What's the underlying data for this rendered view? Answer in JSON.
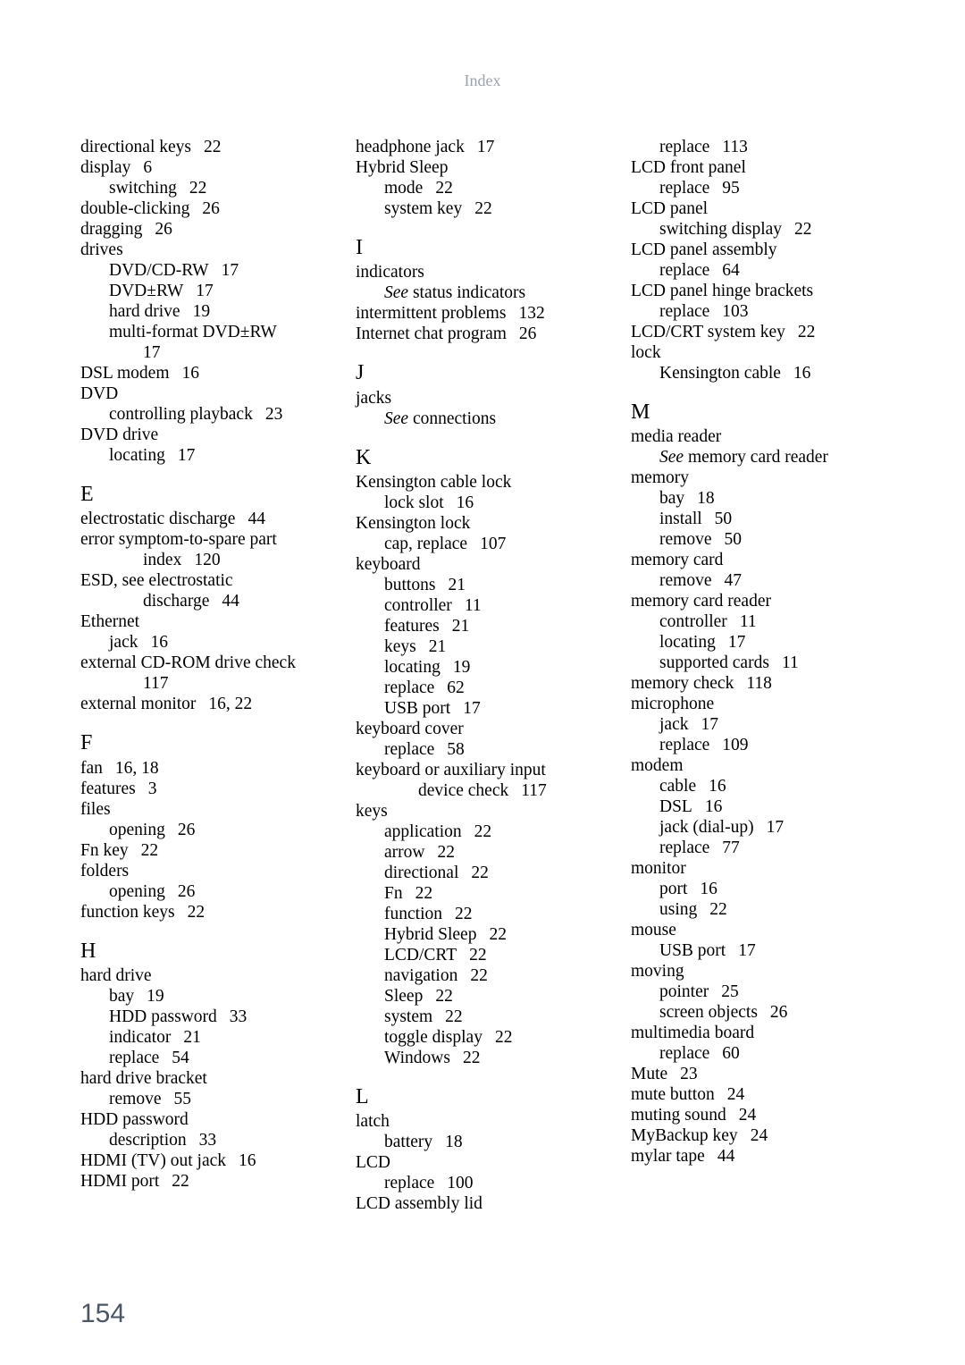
{
  "header": "Index",
  "pageNumber": "154",
  "columns": [
    [
      {
        "cls": "l0",
        "k": "directional keys",
        "p": "22"
      },
      {
        "cls": "l0",
        "k": "display",
        "p": "6"
      },
      {
        "cls": "l1",
        "k": "switching",
        "p": "22"
      },
      {
        "cls": "l0",
        "k": "double-clicking",
        "p": "26"
      },
      {
        "cls": "l0",
        "k": "dragging",
        "p": "26"
      },
      {
        "cls": "l0",
        "k": "drives"
      },
      {
        "cls": "l1",
        "k": "DVD/CD-RW",
        "p": "17"
      },
      {
        "cls": "l1",
        "k": "DVD±RW",
        "p": "17"
      },
      {
        "cls": "l1",
        "k": "hard drive",
        "p": "19"
      },
      {
        "cls": "l1",
        "k": "multi-format DVD±RW"
      },
      {
        "cls": "l2",
        "k": "17"
      },
      {
        "cls": "l0",
        "k": "DSL modem",
        "p": "16"
      },
      {
        "cls": "l0",
        "k": "DVD"
      },
      {
        "cls": "l1",
        "k": "controlling playback",
        "p": "23"
      },
      {
        "cls": "l0",
        "k": "DVD drive"
      },
      {
        "cls": "l1",
        "k": "locating",
        "p": "17"
      },
      {
        "letter": "E"
      },
      {
        "cls": "l0",
        "k": "electrostatic discharge",
        "p": "44"
      },
      {
        "cls": "l0",
        "k": "error symptom-to-spare part"
      },
      {
        "cls": "l2",
        "k": "index",
        "p": "120"
      },
      {
        "cls": "l0",
        "k": "ESD, see electrostatic"
      },
      {
        "cls": "l2",
        "k": "discharge",
        "p": "44"
      },
      {
        "cls": "l0",
        "k": "Ethernet"
      },
      {
        "cls": "l1",
        "k": "jack",
        "p": "16"
      },
      {
        "cls": "l0",
        "k": "external CD-ROM drive check"
      },
      {
        "cls": "l2",
        "k": "117"
      },
      {
        "cls": "l0",
        "k": "external monitor",
        "p": "16, 22"
      },
      {
        "letter": "F"
      },
      {
        "cls": "l0",
        "k": "fan",
        "p": "16, 18"
      },
      {
        "cls": "l0",
        "k": "features",
        "p": "3"
      },
      {
        "cls": "l0",
        "k": "files"
      },
      {
        "cls": "l1",
        "k": "opening",
        "p": "26"
      },
      {
        "cls": "l0",
        "k": "Fn key",
        "p": "22"
      },
      {
        "cls": "l0",
        "k": "folders"
      },
      {
        "cls": "l1",
        "k": "opening",
        "p": "26"
      },
      {
        "cls": "l0",
        "k": "function keys",
        "p": "22"
      },
      {
        "letter": "H"
      },
      {
        "cls": "l0",
        "k": "hard drive"
      },
      {
        "cls": "l1",
        "k": "bay",
        "p": "19"
      },
      {
        "cls": "l1",
        "k": "HDD password",
        "p": "33"
      },
      {
        "cls": "l1",
        "k": "indicator",
        "p": "21"
      },
      {
        "cls": "l1",
        "k": "replace",
        "p": "54"
      },
      {
        "cls": "l0",
        "k": "hard drive bracket"
      },
      {
        "cls": "l1",
        "k": "remove",
        "p": "55"
      },
      {
        "cls": "l0",
        "k": "HDD password"
      },
      {
        "cls": "l1",
        "k": "description",
        "p": "33"
      },
      {
        "cls": "l0",
        "k": "HDMI (TV) out jack",
        "p": "16"
      },
      {
        "cls": "l0",
        "k": "HDMI port",
        "p": "22"
      }
    ],
    [
      {
        "cls": "l0",
        "k": "headphone jack",
        "p": "17"
      },
      {
        "cls": "l0",
        "k": "Hybrid Sleep"
      },
      {
        "cls": "l1",
        "k": "mode",
        "p": "22"
      },
      {
        "cls": "l1",
        "k": "system key",
        "p": "22"
      },
      {
        "letter": "I"
      },
      {
        "cls": "l0",
        "k": "indicators"
      },
      {
        "cls": "l1",
        "see": "See",
        "after": " status indicators"
      },
      {
        "cls": "l0",
        "k": "intermittent problems",
        "p": "132"
      },
      {
        "cls": "l0",
        "k": "Internet chat program",
        "p": "26"
      },
      {
        "letter": "J"
      },
      {
        "cls": "l0",
        "k": "jacks"
      },
      {
        "cls": "l1",
        "see": "See",
        "after": " connections"
      },
      {
        "letter": "K"
      },
      {
        "cls": "l0",
        "k": "Kensington cable lock"
      },
      {
        "cls": "l1",
        "k": "lock slot",
        "p": "16"
      },
      {
        "cls": "l0",
        "k": "Kensington lock"
      },
      {
        "cls": "l1",
        "k": "cap, replace",
        "p": "107"
      },
      {
        "cls": "l0",
        "k": "keyboard"
      },
      {
        "cls": "l1",
        "k": "buttons",
        "p": "21"
      },
      {
        "cls": "l1",
        "k": "controller",
        "p": "11"
      },
      {
        "cls": "l1",
        "k": "features",
        "p": "21"
      },
      {
        "cls": "l1",
        "k": "keys",
        "p": "21"
      },
      {
        "cls": "l1",
        "k": "locating",
        "p": "19"
      },
      {
        "cls": "l1",
        "k": "replace",
        "p": "62"
      },
      {
        "cls": "l1",
        "k": "USB port",
        "p": "17"
      },
      {
        "cls": "l0",
        "k": "keyboard cover"
      },
      {
        "cls": "l1",
        "k": "replace",
        "p": "58"
      },
      {
        "cls": "l0",
        "k": "keyboard or auxiliary input"
      },
      {
        "cls": "l2",
        "k": "device check",
        "p": "117"
      },
      {
        "cls": "l0",
        "k": "keys"
      },
      {
        "cls": "l1",
        "k": "application",
        "p": "22"
      },
      {
        "cls": "l1",
        "k": "arrow",
        "p": "22"
      },
      {
        "cls": "l1",
        "k": "directional",
        "p": "22"
      },
      {
        "cls": "l1",
        "k": "Fn",
        "p": "22"
      },
      {
        "cls": "l1",
        "k": "function",
        "p": "22"
      },
      {
        "cls": "l1",
        "k": "Hybrid Sleep",
        "p": "22"
      },
      {
        "cls": "l1",
        "k": "LCD/CRT",
        "p": "22"
      },
      {
        "cls": "l1",
        "k": "navigation",
        "p": "22"
      },
      {
        "cls": "l1",
        "k": "Sleep",
        "p": "22"
      },
      {
        "cls": "l1",
        "k": "system",
        "p": "22"
      },
      {
        "cls": "l1",
        "k": "toggle display",
        "p": "22"
      },
      {
        "cls": "l1",
        "k": "Windows",
        "p": "22"
      },
      {
        "letter": "L"
      },
      {
        "cls": "l0",
        "k": "latch"
      },
      {
        "cls": "l1",
        "k": "battery",
        "p": "18"
      },
      {
        "cls": "l0",
        "k": "LCD"
      },
      {
        "cls": "l1",
        "k": "replace",
        "p": "100"
      },
      {
        "cls": "l0",
        "k": "LCD assembly lid"
      }
    ],
    [
      {
        "cls": "l1",
        "k": "replace",
        "p": "113"
      },
      {
        "cls": "l0",
        "k": "LCD front panel"
      },
      {
        "cls": "l1",
        "k": "replace",
        "p": "95"
      },
      {
        "cls": "l0",
        "k": "LCD panel"
      },
      {
        "cls": "l1",
        "k": "switching display",
        "p": "22"
      },
      {
        "cls": "l0",
        "k": "LCD panel assembly"
      },
      {
        "cls": "l1",
        "k": "replace",
        "p": "64"
      },
      {
        "cls": "l0",
        "k": "LCD panel hinge brackets"
      },
      {
        "cls": "l1",
        "k": "replace",
        "p": "103"
      },
      {
        "cls": "l0",
        "k": "LCD/CRT system key",
        "p": "22"
      },
      {
        "cls": "l0",
        "k": "lock"
      },
      {
        "cls": "l1",
        "k": "Kensington cable",
        "p": "16"
      },
      {
        "letter": "M"
      },
      {
        "cls": "l0",
        "k": "media reader"
      },
      {
        "cls": "l1",
        "see": "See",
        "after": " memory card reader"
      },
      {
        "cls": "l0",
        "k": "memory"
      },
      {
        "cls": "l1",
        "k": "bay",
        "p": "18"
      },
      {
        "cls": "l1",
        "k": "install",
        "p": "50"
      },
      {
        "cls": "l1",
        "k": "remove",
        "p": "50"
      },
      {
        "cls": "l0",
        "k": "memory card"
      },
      {
        "cls": "l1",
        "k": "remove",
        "p": "47"
      },
      {
        "cls": "l0",
        "k": "memory card reader"
      },
      {
        "cls": "l1",
        "k": "controller",
        "p": "11"
      },
      {
        "cls": "l1",
        "k": "locating",
        "p": "17"
      },
      {
        "cls": "l1",
        "k": "supported cards",
        "p": "11"
      },
      {
        "cls": "l0",
        "k": "memory check",
        "p": "118"
      },
      {
        "cls": "l0",
        "k": "microphone"
      },
      {
        "cls": "l1",
        "k": "jack",
        "p": "17"
      },
      {
        "cls": "l1",
        "k": "replace",
        "p": "109"
      },
      {
        "cls": "l0",
        "k": "modem"
      },
      {
        "cls": "l1",
        "k": "cable",
        "p": "16"
      },
      {
        "cls": "l1",
        "k": "DSL",
        "p": "16"
      },
      {
        "cls": "l1",
        "k": "jack (dial-up)",
        "p": "17"
      },
      {
        "cls": "l1",
        "k": "replace",
        "p": "77"
      },
      {
        "cls": "l0",
        "k": "monitor"
      },
      {
        "cls": "l1",
        "k": "port",
        "p": "16"
      },
      {
        "cls": "l1",
        "k": "using",
        "p": "22"
      },
      {
        "cls": "l0",
        "k": "mouse"
      },
      {
        "cls": "l1",
        "k": "USB port",
        "p": "17"
      },
      {
        "cls": "l0",
        "k": "moving"
      },
      {
        "cls": "l1",
        "k": "pointer",
        "p": "25"
      },
      {
        "cls": "l1",
        "k": "screen objects",
        "p": "26"
      },
      {
        "cls": "l0",
        "k": "multimedia board"
      },
      {
        "cls": "l1",
        "k": "replace",
        "p": "60"
      },
      {
        "cls": "l0",
        "k": "Mute",
        "p": "23"
      },
      {
        "cls": "l0",
        "k": "mute button",
        "p": "24"
      },
      {
        "cls": "l0",
        "k": "muting sound",
        "p": "24"
      },
      {
        "cls": "l0",
        "k": "MyBackup key",
        "p": "24"
      },
      {
        "cls": "l0",
        "k": "mylar tape",
        "p": "44"
      }
    ]
  ]
}
